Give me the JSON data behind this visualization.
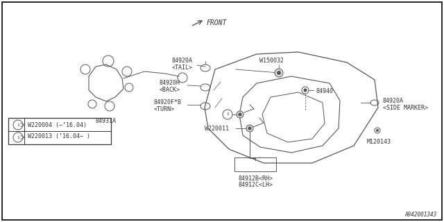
{
  "bg_color": "#ffffff",
  "border_color": "#000000",
  "line_color": "#555555",
  "text_color": "#333333",
  "diagram_id": "A942001343",
  "front_label": "FRONT",
  "legend_line1": "W220004 (−’16.04)",
  "legend_line2": "W220013 (’16.04− )"
}
